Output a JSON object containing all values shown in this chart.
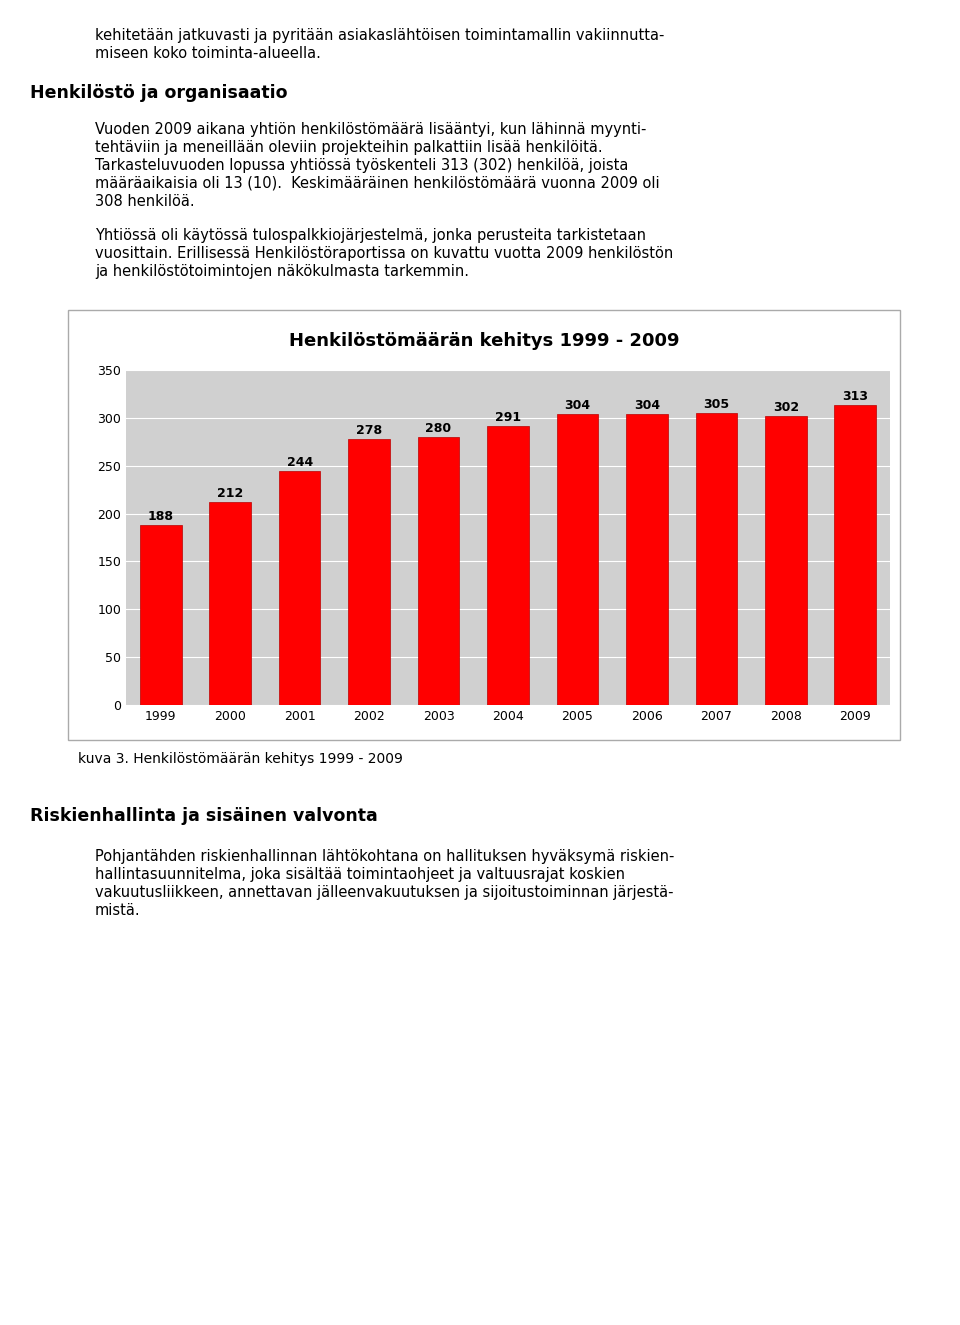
{
  "title": "Henkilöstömäärän kehitys 1999 - 2009",
  "years": [
    1999,
    2000,
    2001,
    2002,
    2003,
    2004,
    2005,
    2006,
    2007,
    2008,
    2009
  ],
  "values": [
    188,
    212,
    244,
    278,
    280,
    291,
    304,
    304,
    305,
    302,
    313
  ],
  "bar_color": "#ff0000",
  "bar_edge_color": "#bb0000",
  "background_color": "#ffffff",
  "plot_bg_color": "#d0d0d0",
  "grid_color": "#ffffff",
  "ylim": [
    0,
    350
  ],
  "yticks": [
    0,
    50,
    100,
    150,
    200,
    250,
    300,
    350
  ],
  "title_fontsize": 13,
  "tick_fontsize": 9,
  "value_fontsize": 9,
  "caption": "kuva 3. Henkilöstömäärän kehitys 1999 - 2009"
}
